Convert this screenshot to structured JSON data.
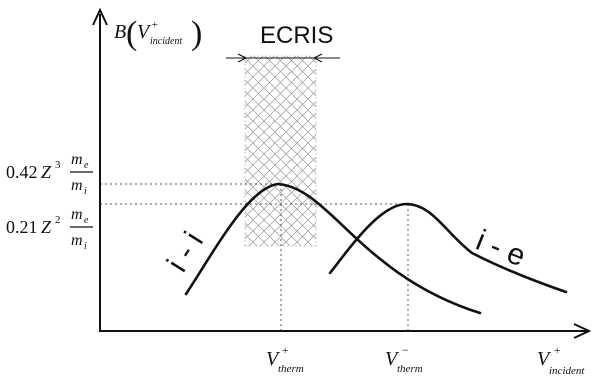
{
  "colors": {
    "ink": "#111111",
    "guide": "#555555",
    "hatch": "#999999"
  },
  "region_label": "ECRIS",
  "y_axis": {
    "symbol": "B",
    "arg_main": "V",
    "arg_sup": "+",
    "arg_sub": "incident",
    "ticks": [
      {
        "coef": "0.42",
        "var": "Z",
        "exp": "3",
        "num": "m",
        "num_sub": "e",
        "den": "m",
        "den_sub": "i"
      },
      {
        "coef": "0.21",
        "var": "Z",
        "exp": "2",
        "num": "m",
        "num_sub": "e",
        "den": "m",
        "den_sub": "i"
      }
    ]
  },
  "x_axis": {
    "main": "V",
    "sup": "+",
    "sub": "incident",
    "ticks": [
      {
        "main": "V",
        "sup": "+",
        "sub": "therm"
      },
      {
        "main": "V",
        "sup": "−",
        "sub": "therm"
      }
    ]
  },
  "curves": [
    {
      "label": "i - i"
    },
    {
      "label": "i - e"
    }
  ]
}
